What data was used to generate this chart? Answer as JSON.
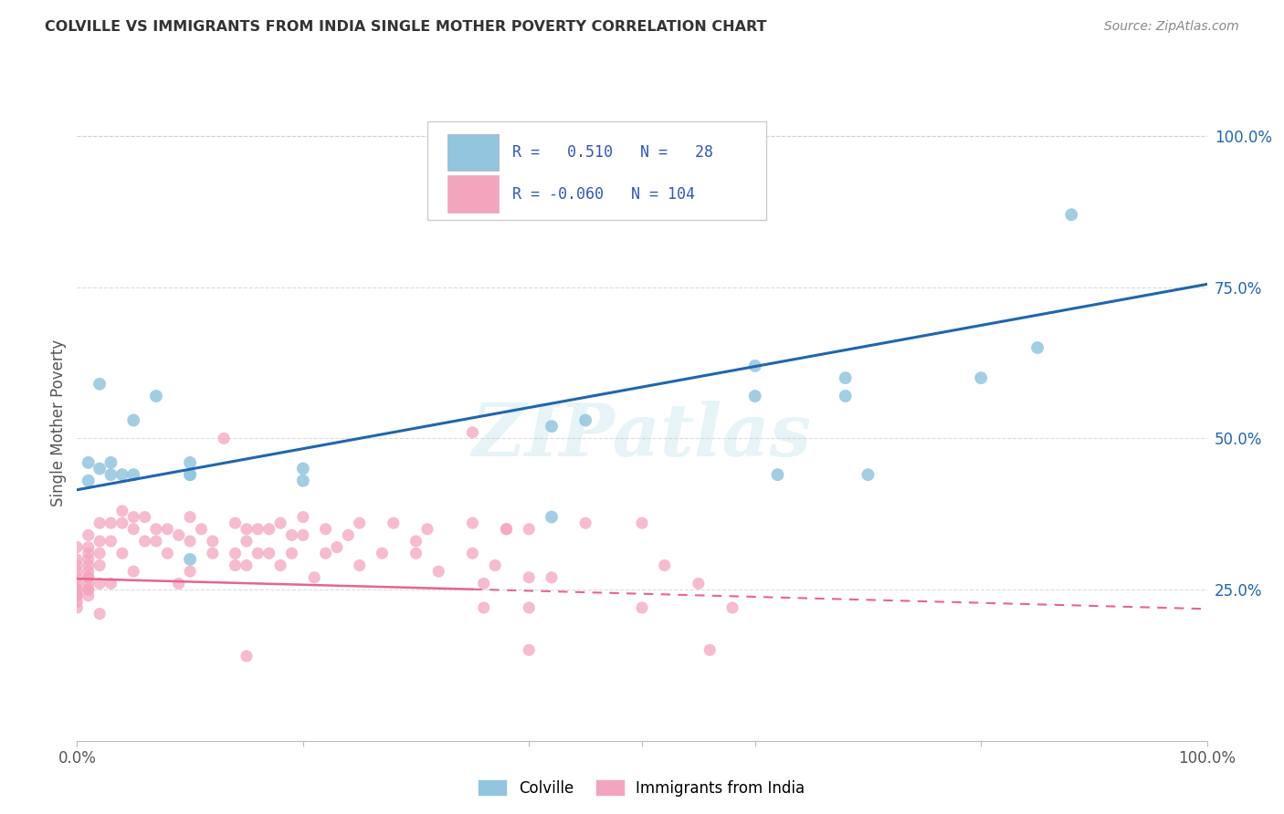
{
  "title": "COLVILLE VS IMMIGRANTS FROM INDIA SINGLE MOTHER POVERTY CORRELATION CHART",
  "source": "Source: ZipAtlas.com",
  "ylabel": "Single Mother Poverty",
  "ytick_labels": [
    "100.0%",
    "75.0%",
    "50.0%",
    "25.0%"
  ],
  "ytick_positions": [
    1.0,
    0.75,
    0.5,
    0.25
  ],
  "blue_R": 0.51,
  "blue_N": 28,
  "pink_R": -0.06,
  "pink_N": 104,
  "blue_color": "#92c5de",
  "pink_color": "#f4a5be",
  "blue_line_color": "#2166ac",
  "pink_line_color": "#e8658a",
  "watermark_text": "ZIPatlas",
  "legend_blue_label": "Colville",
  "legend_pink_label": "Immigrants from India",
  "blue_scatter_x": [
    0.01,
    0.01,
    0.02,
    0.02,
    0.03,
    0.03,
    0.04,
    0.05,
    0.05,
    0.07,
    0.1,
    0.1,
    0.1,
    0.1,
    0.2,
    0.2,
    0.42,
    0.42,
    0.45,
    0.6,
    0.6,
    0.62,
    0.68,
    0.68,
    0.7,
    0.8,
    0.85,
    0.88
  ],
  "blue_scatter_y": [
    0.46,
    0.43,
    0.45,
    0.59,
    0.44,
    0.46,
    0.44,
    0.44,
    0.53,
    0.57,
    0.46,
    0.44,
    0.3,
    0.44,
    0.43,
    0.45,
    0.52,
    0.37,
    0.53,
    0.62,
    0.57,
    0.44,
    0.6,
    0.57,
    0.44,
    0.6,
    0.65,
    0.87
  ],
  "pink_scatter_x": [
    0.0,
    0.0,
    0.0,
    0.0,
    0.0,
    0.0,
    0.0,
    0.0,
    0.0,
    0.0,
    0.0,
    0.0,
    0.01,
    0.01,
    0.01,
    0.01,
    0.01,
    0.01,
    0.01,
    0.01,
    0.01,
    0.01,
    0.01,
    0.01,
    0.02,
    0.02,
    0.02,
    0.02,
    0.02,
    0.02,
    0.03,
    0.03,
    0.03,
    0.04,
    0.04,
    0.04,
    0.05,
    0.05,
    0.05,
    0.06,
    0.06,
    0.07,
    0.07,
    0.08,
    0.08,
    0.09,
    0.09,
    0.1,
    0.1,
    0.1,
    0.11,
    0.12,
    0.12,
    0.13,
    0.14,
    0.14,
    0.15,
    0.15,
    0.15,
    0.16,
    0.16,
    0.17,
    0.17,
    0.18,
    0.18,
    0.19,
    0.19,
    0.2,
    0.2,
    0.21,
    0.22,
    0.22,
    0.23,
    0.24,
    0.25,
    0.25,
    0.27,
    0.28,
    0.3,
    0.3,
    0.31,
    0.32,
    0.35,
    0.35,
    0.36,
    0.37,
    0.38,
    0.4,
    0.4,
    0.4,
    0.42,
    0.45,
    0.5,
    0.5,
    0.52,
    0.55,
    0.56,
    0.58,
    0.35,
    0.36,
    0.38,
    0.4,
    0.14,
    0.15
  ],
  "pink_scatter_y": [
    0.32,
    0.3,
    0.29,
    0.28,
    0.27,
    0.26,
    0.25,
    0.25,
    0.24,
    0.24,
    0.23,
    0.22,
    0.34,
    0.32,
    0.31,
    0.3,
    0.29,
    0.28,
    0.27,
    0.27,
    0.26,
    0.25,
    0.25,
    0.24,
    0.36,
    0.33,
    0.31,
    0.29,
    0.26,
    0.21,
    0.36,
    0.33,
    0.26,
    0.38,
    0.36,
    0.31,
    0.37,
    0.35,
    0.28,
    0.37,
    0.33,
    0.35,
    0.33,
    0.35,
    0.31,
    0.34,
    0.26,
    0.37,
    0.33,
    0.28,
    0.35,
    0.33,
    0.31,
    0.5,
    0.31,
    0.29,
    0.35,
    0.33,
    0.29,
    0.35,
    0.31,
    0.35,
    0.31,
    0.36,
    0.29,
    0.34,
    0.31,
    0.37,
    0.34,
    0.27,
    0.35,
    0.31,
    0.32,
    0.34,
    0.36,
    0.29,
    0.31,
    0.36,
    0.31,
    0.33,
    0.35,
    0.28,
    0.51,
    0.31,
    0.26,
    0.29,
    0.35,
    0.35,
    0.27,
    0.22,
    0.27,
    0.36,
    0.36,
    0.22,
    0.29,
    0.26,
    0.15,
    0.22,
    0.36,
    0.22,
    0.35,
    0.15,
    0.36,
    0.14
  ],
  "blue_line_y_start": 0.415,
  "blue_line_y_end": 0.755,
  "pink_line_y_start": 0.268,
  "pink_line_y_end": 0.218,
  "xlim": [
    0.0,
    1.0
  ],
  "ylim": [
    0.0,
    1.05
  ],
  "background_color": "#ffffff",
  "grid_color": "#cccccc",
  "grid_alpha": 0.7
}
